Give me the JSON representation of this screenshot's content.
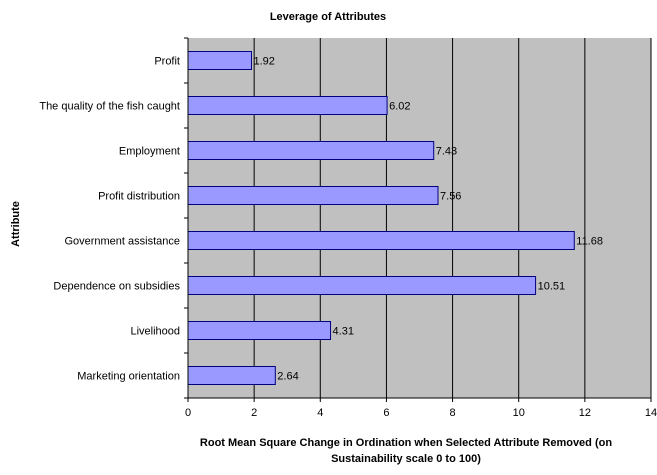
{
  "chart_data": {
    "type": "bar",
    "orientation": "horizontal",
    "title": "Leverage of Attributes",
    "xlabel_line1": "Root Mean Square Change in Ordination when Selected Attribute Removed (on",
    "xlabel_line2": "Sustainability scale 0 to 100)",
    "ylabel": "Attribute",
    "categories": [
      "Profit",
      "The quality of the fish caught",
      "Employment",
      "Profit distribution",
      "Government assistance",
      "Dependence on subsidies",
      "Livelihood",
      "Marketing orientation"
    ],
    "values": [
      1.92,
      6.02,
      7.43,
      7.56,
      11.68,
      10.51,
      4.31,
      2.64
    ],
    "data_labels": [
      "1.92",
      "6.02",
      "7.43",
      "7.56",
      "11.68",
      "10.51",
      "4.31",
      "2.64"
    ],
    "xlim": [
      0,
      14
    ],
    "xticks": [
      0,
      2,
      4,
      6,
      8,
      10,
      12,
      14
    ],
    "grid": "vertical",
    "legend": "none",
    "colors": {
      "bar_fill": "#9999ff",
      "bar_stroke": "#000080",
      "plot_background": "#c0c0c0",
      "gridline": "#000000"
    }
  }
}
